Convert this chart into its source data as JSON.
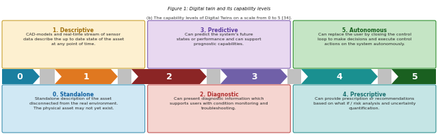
{
  "title_caption": "(b) The capability levels of Digital Twins on a scale from 0 to 5 [34].",
  "figure_label": "Figure 1: Digital twin and its capability levels",
  "arrow_colors": [
    "#1a7fa0",
    "#e07820",
    "#8b2525",
    "#7060a8",
    "#1a9090",
    "#1a6020"
  ],
  "arrow_labels": [
    "0",
    "1",
    "2",
    "3",
    "4",
    "5"
  ],
  "gray_color": "#c0c0c0",
  "top_boxes": [
    {
      "label": "0. Standalone",
      "text": "Standalone description of the asset\ndisconnected from the real environment.\nThe physical asset may not yet exist.",
      "color": "#d0e8f4",
      "border_color": "#4090b0",
      "title_color": "#1060a0",
      "col": 0
    },
    {
      "label": "2. Diagnostic",
      "text": "Can present diagnostic information which\nsupports users with condition monitoring and\ntroubleshooting.",
      "color": "#f5d5d0",
      "border_color": "#c05050",
      "title_color": "#b03030",
      "col": 2
    },
    {
      "label": "4. Prescriptive",
      "text": "Can provide prescription or recommendations\nbased on what if / risk analysis and uncertainty\nquantification.",
      "color": "#c5e5e5",
      "border_color": "#309090",
      "title_color": "#1a7070",
      "col": 4
    }
  ],
  "bottom_boxes": [
    {
      "label": "1. Descriptive",
      "text": "CAD-models and real-time stream of sensor\ndata describe the up to date state of the asset\nat any point of time.",
      "color": "#fdf0d0",
      "border_color": "#c8a030",
      "title_color": "#a07010",
      "col": 1
    },
    {
      "label": "3. Predictive",
      "text": "Can predict the system's future\nstates or performance and can support\nprognostic capabilities.",
      "color": "#e8d8f0",
      "border_color": "#8060b0",
      "title_color": "#6040a0",
      "col": 3
    },
    {
      "label": "5. Autonomous",
      "text": "Can replace the user by closing the control\nloop to make decisions and execute control\nactions on the system autonomously.",
      "color": "#c5e5c5",
      "border_color": "#309030",
      "title_color": "#1a6020",
      "col": 5
    }
  ],
  "figw": 6.4,
  "figh": 1.96,
  "dpi": 100
}
